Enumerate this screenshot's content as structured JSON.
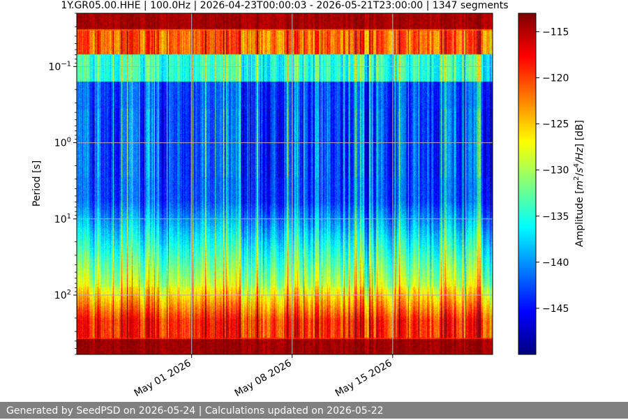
{
  "chart_data": {
    "type": "heatmap",
    "title": "1Y.GR05.00.HHE | 100.0Hz | 2026-04-23T00:00:03 - 2026-05-21T23:00:00 | 1347 segments",
    "ylabel": "Period [s]",
    "xlabel": "",
    "x_axis": {
      "type": "date",
      "range": [
        "2026-04-23T00:00:03",
        "2026-05-21T23:00:00"
      ],
      "ticks": [
        {
          "value": "2026-05-01",
          "label": "May 01 2026"
        },
        {
          "value": "2026-05-08",
          "label": "May 08 2026"
        },
        {
          "value": "2026-05-15",
          "label": "May 15 2026"
        }
      ]
    },
    "y_axis": {
      "scale": "log",
      "inverted": true,
      "range": [
        0.02,
        600
      ],
      "ticks": [
        {
          "value": 0.1,
          "label_base": "10",
          "label_exp": "−1"
        },
        {
          "value": 1,
          "label_base": "10",
          "label_exp": "0"
        },
        {
          "value": 10,
          "label_base": "10",
          "label_exp": "1"
        },
        {
          "value": 100,
          "label_base": "10",
          "label_exp": "2"
        }
      ]
    },
    "colorbar": {
      "label_parts": [
        "Amplitude [",
        "m",
        "2",
        "/",
        "s",
        "4",
        "/",
        "Hz",
        "] [dB]"
      ],
      "range": [
        -150,
        -113
      ],
      "ticks": [
        {
          "value": -115,
          "label": "−115"
        },
        {
          "value": -120,
          "label": "−120"
        },
        {
          "value": -125,
          "label": "−125"
        },
        {
          "value": -130,
          "label": "−130"
        },
        {
          "value": -135,
          "label": "−135"
        },
        {
          "value": -140,
          "label": "−140"
        },
        {
          "value": -145,
          "label": "−145"
        }
      ],
      "colormap": "jet"
    },
    "grid": true,
    "segments": 1347,
    "sampling_rate_hz": 100.0
  },
  "footer": {
    "text": "Generated by SeedPSD on 2026-05-24 | Calculations updated on 2026-05-22"
  }
}
